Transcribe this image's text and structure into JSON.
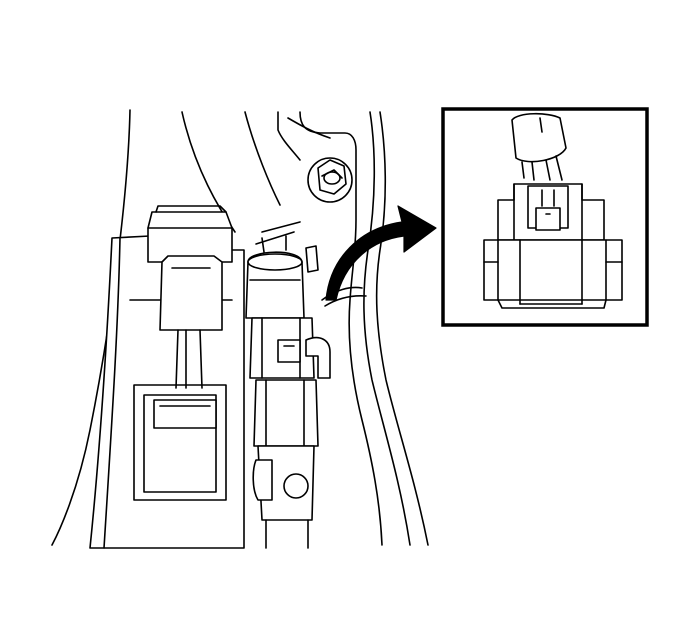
{
  "figure": {
    "background_color": "#ffffff",
    "line_color": "#000000",
    "main_view": "component-assembly-line-drawing",
    "detail_view": "connector-closeup-inset",
    "callout": "curved-arrow-to-inset"
  }
}
